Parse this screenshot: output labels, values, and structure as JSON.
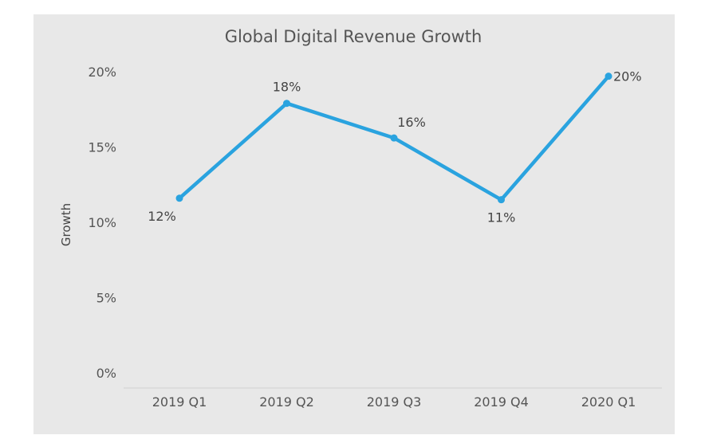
{
  "chart_data": {
    "type": "line",
    "title": "Global Digital Revenue Growth",
    "xlabel": "",
    "ylabel": "Growth",
    "categories": [
      "2019 Q1",
      "2019 Q2",
      "2019 Q3",
      "2019 Q4",
      "2020 Q1"
    ],
    "series": [
      {
        "values": [
          11.6,
          17.9,
          15.6,
          11.5,
          19.7
        ],
        "data_labels": [
          "12%",
          "18%",
          "16%",
          "11%",
          "20%"
        ]
      }
    ],
    "ylim": [
      0,
      20
    ],
    "yticks": [
      0,
      5,
      10,
      15,
      20
    ],
    "ytick_labels": [
      "0%",
      "5%",
      "10%",
      "15%",
      "20%"
    ],
    "grid": false,
    "legend": "none",
    "colors": {
      "line": "#2aa3df",
      "background": "#e8e8e8"
    }
  }
}
